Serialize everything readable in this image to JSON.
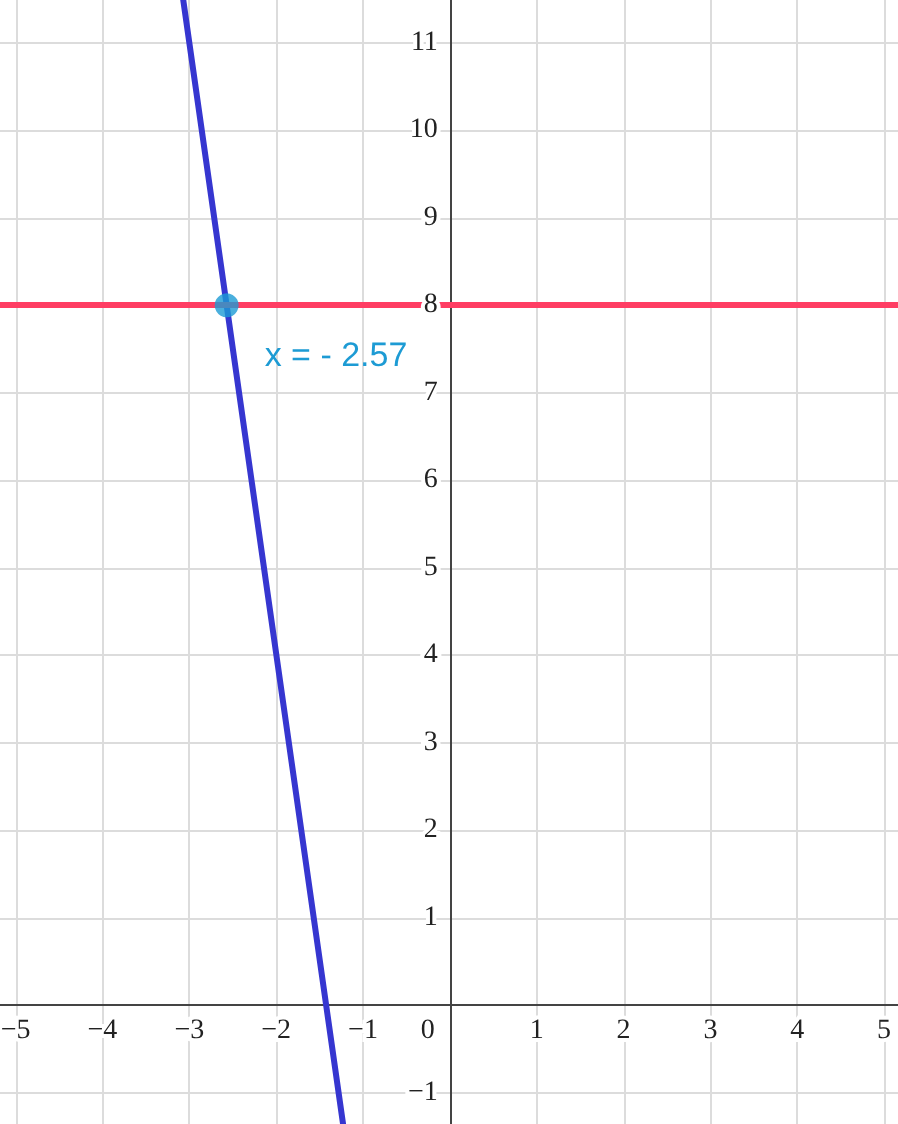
{
  "chart_data": {
    "type": "line",
    "xlim": [
      -5.18,
      5.16
    ],
    "ylim": [
      -1.36,
      11.49
    ],
    "xticks": [
      {
        "value": -5,
        "label": "−5"
      },
      {
        "value": -4,
        "label": "−4"
      },
      {
        "value": -3,
        "label": "−3"
      },
      {
        "value": -2,
        "label": "−2"
      },
      {
        "value": -1,
        "label": "−1"
      },
      0,
      1,
      2,
      3,
      4,
      5
    ],
    "yticks": [
      {
        "value": -1,
        "label": "−1"
      },
      1,
      2,
      3,
      4,
      5,
      6,
      7,
      8,
      9,
      10,
      11
    ],
    "grid": true,
    "series": [
      {
        "color": "#3636d0",
        "x": [
          -3.07,
          -1.23
        ],
        "values": [
          11.49,
          -1.36
        ]
      },
      {
        "type": "scatter",
        "color": "#1d9bd4",
        "x": [
          -2.57
        ],
        "values": [
          8
        ]
      }
    ],
    "ref_lines": [
      {
        "axis": "y",
        "value": 8,
        "color": "#ff3d63"
      }
    ],
    "annotations": [
      {
        "text": "x = - 2.57",
        "x": -2.57,
        "y": 8
      }
    ]
  }
}
